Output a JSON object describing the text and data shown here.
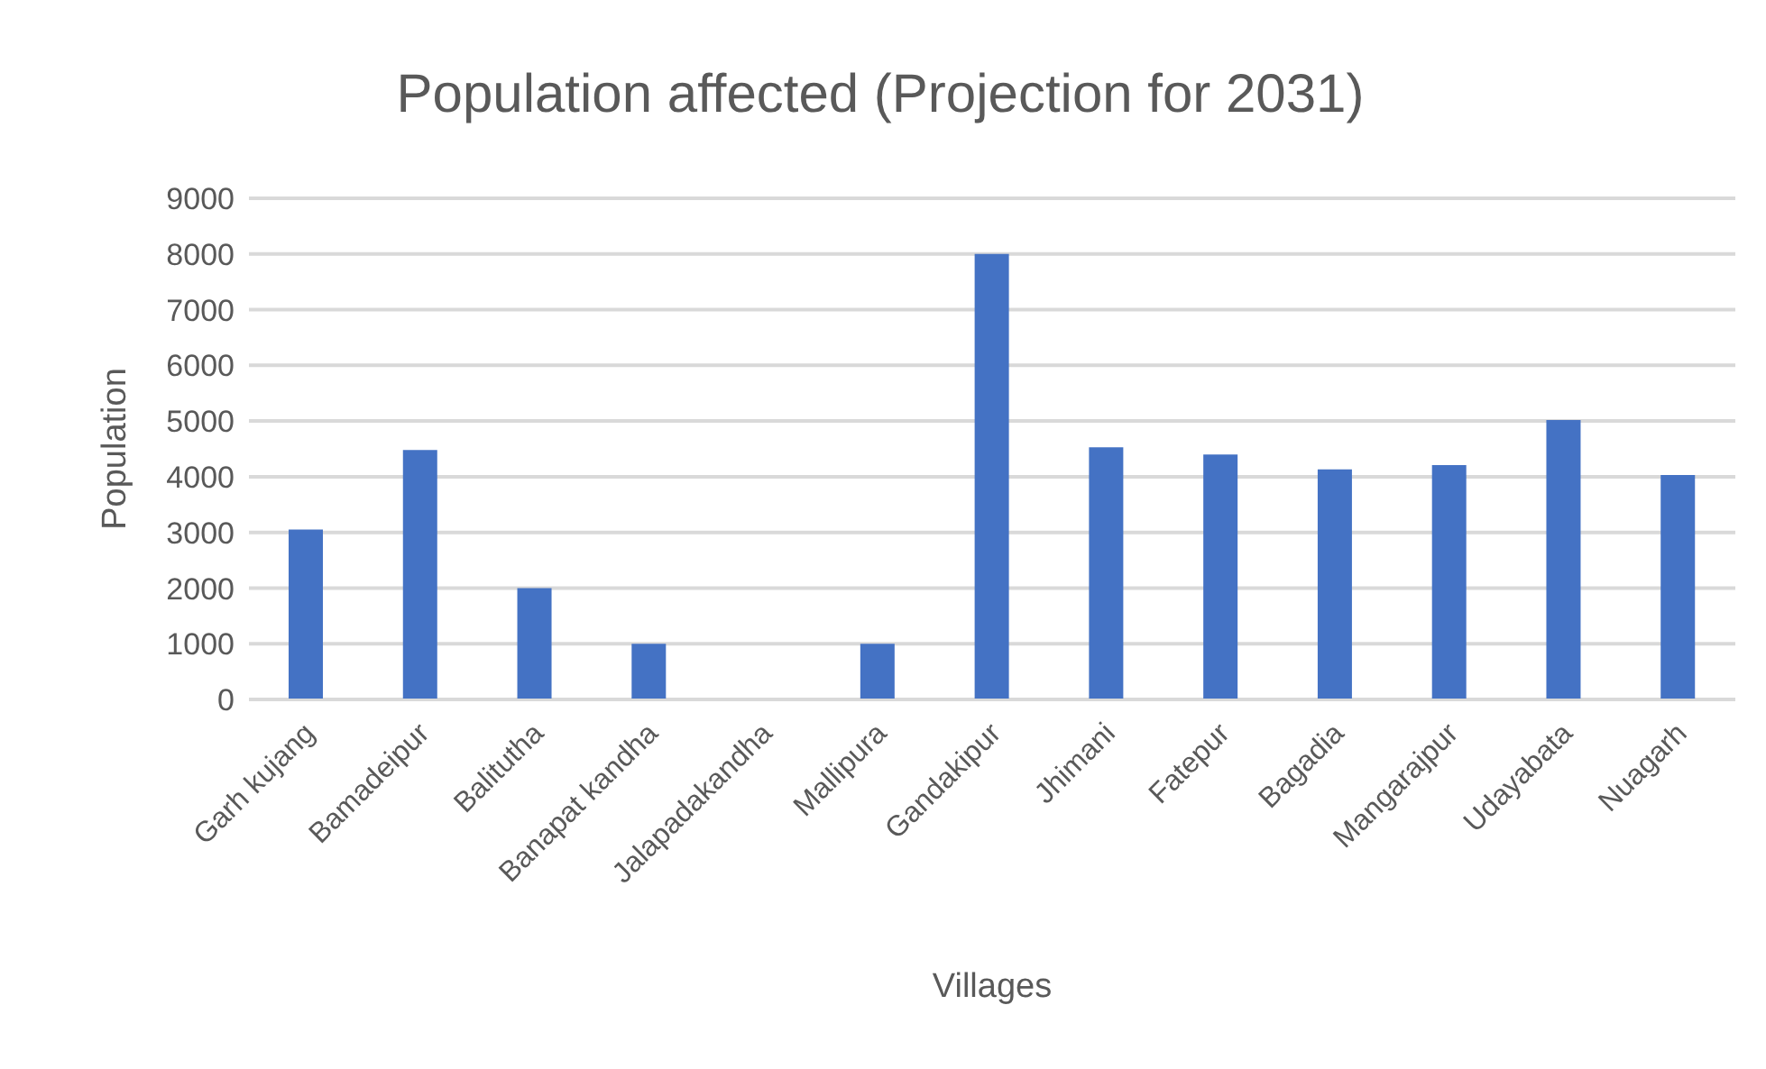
{
  "chart_data": {
    "type": "bar",
    "title": "Population affected (Projection for 2031)",
    "xlabel": "Villages",
    "ylabel": "Population",
    "categories": [
      "Garh kujang",
      "Bamadeipur",
      "Balitutha",
      "Banapat kandha",
      "Jalapadakandha",
      "Mallipura",
      "Gandakipur",
      "Jhimani",
      "Fatepur",
      "Bagadia",
      "Mangarajpur",
      "Udayabata",
      "Nuagarh"
    ],
    "values": [
      3050,
      4480,
      2000,
      1000,
      0,
      1000,
      8000,
      4530,
      4400,
      4130,
      4210,
      5020,
      4030
    ],
    "color": "#4472c4",
    "ylim": [
      0,
      9000
    ],
    "yticks": [
      0,
      1000,
      2000,
      3000,
      4000,
      5000,
      6000,
      7000,
      8000,
      9000
    ],
    "grid": "y"
  }
}
